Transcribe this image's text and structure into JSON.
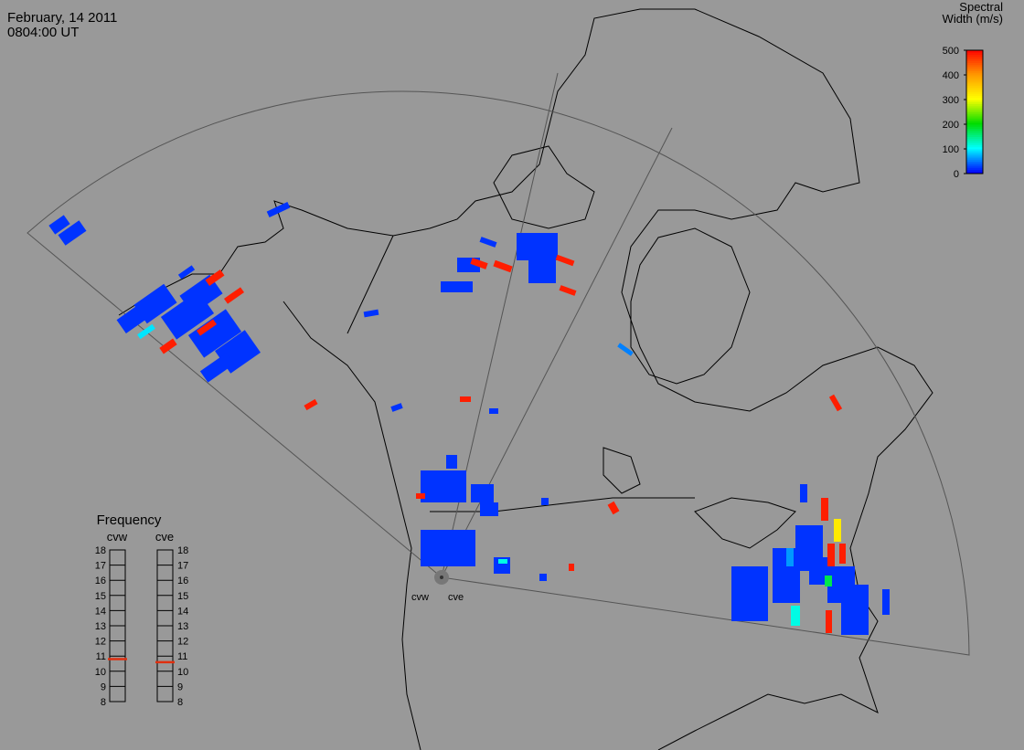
{
  "header": {
    "date": "February, 14 2011",
    "time": "0804:00 UT"
  },
  "colorbar": {
    "title": [
      "Spectral",
      "Width (m/s)"
    ],
    "lim": [
      0,
      500
    ],
    "ticks": [
      0,
      100,
      200,
      300,
      400,
      500
    ]
  },
  "frequency": {
    "title": "Frequency",
    "lim": [
      8,
      18
    ],
    "ticks": [
      8,
      9,
      10,
      11,
      12,
      13,
      14,
      15,
      16,
      17,
      18
    ],
    "radars": [
      {
        "name": "cvw",
        "value": 10.8,
        "color": "#e03010"
      },
      {
        "name": "cve",
        "value": 10.6,
        "color": "#e03010"
      }
    ]
  },
  "stations": [
    "cvw",
    "cve"
  ],
  "radar": {
    "cells": [
      20,
      20,
      20,
      20,
      20,
      20,
      20,
      20,
      20,
      480,
      480,
      480,
      480,
      90,
      20,
      20,
      20,
      20,
      20,
      20,
      480,
      480,
      480,
      480,
      20,
      20,
      50,
      480,
      480,
      480,
      20,
      20,
      20,
      20,
      20,
      20,
      20,
      20,
      480,
      480,
      20,
      20,
      480,
      110,
      20,
      20,
      20,
      20,
      20,
      20,
      20,
      60,
      110,
      170,
      320,
      480,
      480,
      480,
      480,
      20,
      20
    ]
  }
}
